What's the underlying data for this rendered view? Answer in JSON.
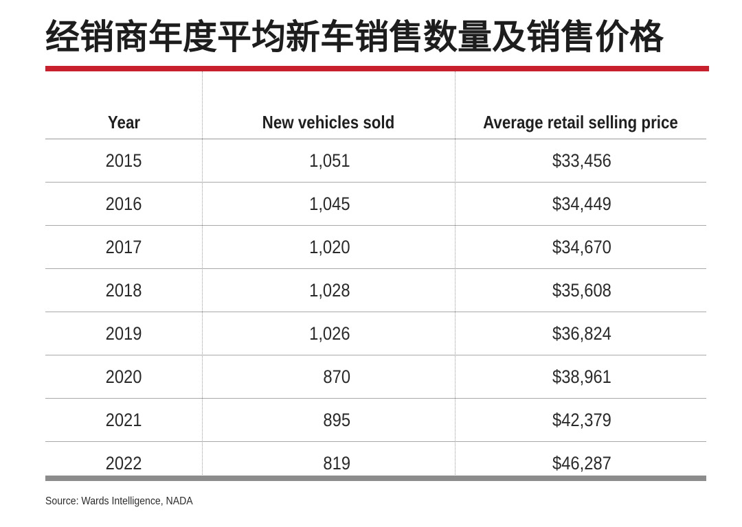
{
  "title": "经销商年度平均新车销售数量及销售价格",
  "colors": {
    "accent_rule": "#c8202d",
    "bottom_rule": "#8c8c8c",
    "text": "#222222"
  },
  "chart_data": {
    "type": "table",
    "title": "经销商年度平均新车销售数量及销售价格",
    "columns": [
      "Year",
      "New vehicles sold",
      "Average retail selling price"
    ],
    "rows": [
      [
        "2015",
        "1,051",
        "$33,456"
      ],
      [
        "2016",
        "1,045",
        "$34,449"
      ],
      [
        "2017",
        "1,020",
        "$34,670"
      ],
      [
        "2018",
        "1,028",
        "$35,608"
      ],
      [
        "2019",
        "1,026",
        "$36,824"
      ],
      [
        "2020",
        "870",
        "$38,961"
      ],
      [
        "2021",
        "895",
        "$42,379"
      ],
      [
        "2022",
        "819",
        "$46,287"
      ]
    ],
    "source": "Source: Wards Intelligence, NADA"
  }
}
